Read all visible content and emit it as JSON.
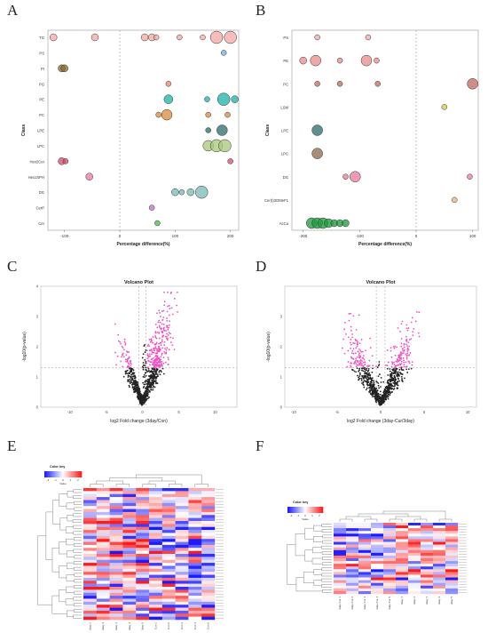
{
  "panels": {
    "A": {
      "letter": "A",
      "chart_data": {
        "type": "scatter",
        "xlabel": "Percentage difference(%)",
        "ylabel": "Class",
        "categories": [
          "TG",
          "PS",
          "PI",
          "PG",
          "PE",
          "PC",
          "LPE",
          "LPC",
          "Hex2Cer",
          "Hex1SPH",
          "DG",
          "CerP",
          "Cer"
        ],
        "xticks": [
          -100,
          0,
          100,
          200
        ],
        "xlim": [
          -130,
          215
        ],
        "points": [
          {
            "c": "TG",
            "x": -120,
            "s": 4,
            "color": "#f4a6a6"
          },
          {
            "c": "TG",
            "x": -45,
            "s": 4,
            "color": "#f4a6a6"
          },
          {
            "c": "TG",
            "x": 45,
            "s": 4,
            "color": "#f4a6a6"
          },
          {
            "c": "TG",
            "x": 58,
            "s": 4,
            "color": "#f4a6a6"
          },
          {
            "c": "TG",
            "x": 66,
            "s": 3,
            "color": "#f4a6a6"
          },
          {
            "c": "TG",
            "x": 108,
            "s": 3,
            "color": "#f4a6a6"
          },
          {
            "c": "TG",
            "x": 150,
            "s": 3,
            "color": "#f4a6a6"
          },
          {
            "c": "TG",
            "x": 175,
            "s": 7,
            "color": "#f4a6a6"
          },
          {
            "c": "TG",
            "x": 200,
            "s": 7,
            "color": "#f4a6a6"
          },
          {
            "c": "PS",
            "x": 188,
            "s": 3,
            "color": "#6ab0e0"
          },
          {
            "c": "PI",
            "x": -105,
            "s": 4,
            "color": "#8b6a2e"
          },
          {
            "c": "PI",
            "x": -100,
            "s": 4,
            "color": "#8b6a2e"
          },
          {
            "c": "PG",
            "x": 88,
            "s": 3,
            "color": "#e88a6a"
          },
          {
            "c": "PE",
            "x": 88,
            "s": 5,
            "color": "#1ab0a8"
          },
          {
            "c": "PE",
            "x": 158,
            "s": 3,
            "color": "#1ab0a8"
          },
          {
            "c": "PE",
            "x": 188,
            "s": 7,
            "color": "#1ab0a8"
          },
          {
            "c": "PE",
            "x": 208,
            "s": 4,
            "color": "#1ab0a8"
          },
          {
            "c": "PC",
            "x": 70,
            "s": 3,
            "color": "#d88a3a"
          },
          {
            "c": "PC",
            "x": 85,
            "s": 6,
            "color": "#d88a3a"
          },
          {
            "c": "PC",
            "x": 160,
            "s": 3,
            "color": "#d88a3a"
          },
          {
            "c": "PC",
            "x": 195,
            "s": 3,
            "color": "#d88a3a"
          },
          {
            "c": "LPE",
            "x": 160,
            "s": 3,
            "color": "#2a6a6a"
          },
          {
            "c": "LPE",
            "x": 185,
            "s": 6,
            "color": "#2a6a6a"
          },
          {
            "c": "LPC",
            "x": 160,
            "s": 6,
            "color": "#a8c87a"
          },
          {
            "c": "LPC",
            "x": 175,
            "s": 7,
            "color": "#a8c87a"
          },
          {
            "c": "LPC",
            "x": 190,
            "s": 7,
            "color": "#a8c87a"
          },
          {
            "c": "Hex2Cer",
            "x": -105,
            "s": 4,
            "color": "#d84a6a"
          },
          {
            "c": "Hex2Cer",
            "x": -98,
            "s": 3,
            "color": "#d84a6a"
          },
          {
            "c": "Hex2Cer",
            "x": 200,
            "s": 3,
            "color": "#d84a6a"
          },
          {
            "c": "Hex1SPH",
            "x": -55,
            "s": 4,
            "color": "#e87a9a"
          },
          {
            "c": "DG",
            "x": 100,
            "s": 4,
            "color": "#7ab8b8"
          },
          {
            "c": "DG",
            "x": 112,
            "s": 3,
            "color": "#7ab8b8"
          },
          {
            "c": "DG",
            "x": 128,
            "s": 4,
            "color": "#7ab8b8"
          },
          {
            "c": "DG",
            "x": 148,
            "s": 7,
            "color": "#7ab8b8"
          },
          {
            "c": "CerP",
            "x": 58,
            "s": 3,
            "color": "#c070c8"
          },
          {
            "c": "Cer",
            "x": 68,
            "s": 3,
            "color": "#48b848"
          }
        ]
      }
    },
    "B": {
      "letter": "B",
      "chart_data": {
        "type": "scatter",
        "xlabel": "Percentage difference(%)",
        "ylabel": "Class",
        "categories": [
          "PS",
          "PE",
          "PC",
          "LSM",
          "LPE",
          "LPC",
          "DG",
          "Cer(t)3OMeF1",
          "AcCa"
        ],
        "xticks": [
          -200,
          -100,
          0,
          100
        ],
        "xlim": [
          -220,
          110
        ],
        "points": [
          {
            "c": "PS",
            "x": -175,
            "s": 3,
            "color": "#f4a6a6"
          },
          {
            "c": "PS",
            "x": -85,
            "s": 3,
            "color": "#f4a6a6"
          },
          {
            "c": "PE",
            "x": -200,
            "s": 4,
            "color": "#e98a8a"
          },
          {
            "c": "PE",
            "x": -178,
            "s": 6,
            "color": "#e98a8a"
          },
          {
            "c": "PE",
            "x": -135,
            "s": 3,
            "color": "#e98a8a"
          },
          {
            "c": "PE",
            "x": -88,
            "s": 6,
            "color": "#e98a8a"
          },
          {
            "c": "PE",
            "x": -70,
            "s": 3,
            "color": "#e98a8a"
          },
          {
            "c": "PC",
            "x": -175,
            "s": 3,
            "color": "#c06a5a"
          },
          {
            "c": "PC",
            "x": -135,
            "s": 3,
            "color": "#c06a5a"
          },
          {
            "c": "PC",
            "x": -68,
            "s": 3,
            "color": "#c06a5a"
          },
          {
            "c": "PC",
            "x": 100,
            "s": 6,
            "color": "#c06a5a"
          },
          {
            "c": "LSM",
            "x": 50,
            "s": 3,
            "color": "#d8c848"
          },
          {
            "c": "LPE",
            "x": -175,
            "s": 6,
            "color": "#2a6a6a"
          },
          {
            "c": "LPC",
            "x": -175,
            "s": 6,
            "color": "#8a6a4a"
          },
          {
            "c": "DG",
            "x": -125,
            "s": 3,
            "color": "#e87a9a"
          },
          {
            "c": "DG",
            "x": -108,
            "s": 6,
            "color": "#e87a9a"
          },
          {
            "c": "DG",
            "x": 95,
            "s": 3,
            "color": "#e87a9a"
          },
          {
            "c": "Cer(t)3OMeF1",
            "x": 68,
            "s": 3,
            "color": "#f4b070"
          },
          {
            "c": "AcCa",
            "x": -185,
            "s": 6,
            "color": "#1a9a3a"
          },
          {
            "c": "AcCa",
            "x": -175,
            "s": 6,
            "color": "#1a9a3a"
          },
          {
            "c": "AcCa",
            "x": -165,
            "s": 6,
            "color": "#1a9a3a"
          },
          {
            "c": "AcCa",
            "x": -155,
            "s": 5,
            "color": "#1a9a3a"
          },
          {
            "c": "AcCa",
            "x": -145,
            "s": 4,
            "color": "#1a9a3a"
          },
          {
            "c": "AcCa",
            "x": -135,
            "s": 4,
            "color": "#1a9a3a"
          },
          {
            "c": "AcCa",
            "x": -125,
            "s": 4,
            "color": "#1a9a3a"
          }
        ]
      }
    },
    "C": {
      "letter": "C",
      "chart_data": {
        "type": "scatter",
        "title": "Volcano Plot",
        "xlabel": "log2 Fold change (3day/Con)",
        "ylabel": "-log10(p-value)",
        "xticks": [
          -10,
          -5,
          0,
          5,
          10
        ],
        "yticks": [
          0,
          1,
          2,
          3,
          4
        ],
        "xlim": [
          -14,
          13
        ],
        "ylim": [
          0,
          4
        ],
        "threshold_p": 1.3,
        "threshold_fc": [
          -0.5,
          0.5
        ],
        "colors": {
          "sig": "#f050c0",
          "ns": "#222222"
        }
      }
    },
    "D": {
      "letter": "D",
      "chart_data": {
        "type": "scatter",
        "title": "Volcano Plot",
        "xlabel": "log2 Fold change (3day-Cur/3day)",
        "ylabel": "-log10(p-value)",
        "xticks": [
          -10,
          -5,
          0,
          5,
          10
        ],
        "yticks": [
          0,
          1,
          2,
          3
        ],
        "xlim": [
          -11,
          11
        ],
        "ylim": [
          0,
          4
        ],
        "threshold_p": 1.3,
        "threshold_fc": [
          -0.5,
          0.5
        ],
        "colors": {
          "sig": "#f050c0",
          "ns": "#222222"
        }
      }
    },
    "E": {
      "letter": "E",
      "chart_data": {
        "type": "heatmap",
        "color_key_title": "Color key",
        "color_key_ticks": [
          "-2",
          "-1",
          "0",
          "1",
          "2"
        ],
        "color_key_sub": "Value",
        "columns": [
          "3day 2",
          "3day 3",
          "3day 1",
          "3day 4",
          "3day 5",
          "Con 1",
          "Con 2",
          "Con 3",
          "Con 4",
          "Con 5"
        ],
        "n_rows": 44,
        "palette": [
          "#1a1aff",
          "#ffffff",
          "#ff1a1a"
        ]
      }
    },
    "F": {
      "letter": "F",
      "chart_data": {
        "type": "heatmap",
        "color_key_title": "Color key",
        "color_key_ticks": [
          "-2",
          "-1",
          "0",
          "1",
          "2"
        ],
        "color_key_sub": "Value",
        "columns": [
          "3day Cur 1",
          "3day Cur 2",
          "3day Cur 3",
          "3day Cur 4",
          "3day Cur 5",
          "3day 1",
          "3day 2",
          "3day 3",
          "3day 4",
          "3day 5"
        ],
        "n_rows": 26,
        "palette": [
          "#1a1aff",
          "#ffffff",
          "#ff1a1a"
        ]
      }
    }
  }
}
